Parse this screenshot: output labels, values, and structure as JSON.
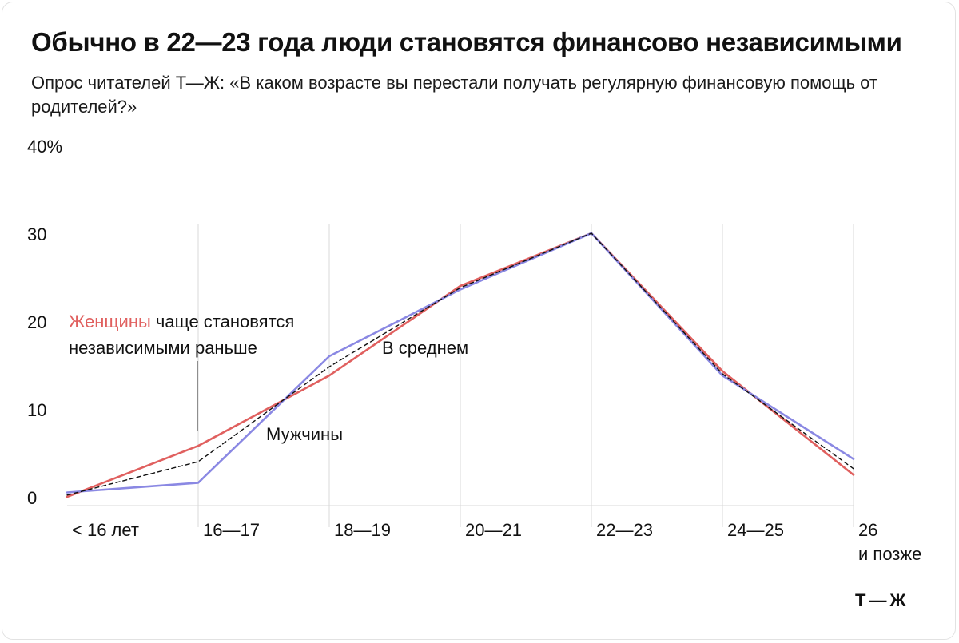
{
  "title": "Обычно в 22—23 года люди становятся финансово независимыми",
  "subtitle": "Опрос читателей Т—Ж: «В каком возрасте вы перестали получать регулярную финансовую помощь от родителей?»",
  "logo_text": "Т—Ж",
  "colors": {
    "women": "#e0605f",
    "men": "#8a88e3",
    "average": "#111111",
    "grid": "#d9d9d9",
    "text": "#111111"
  },
  "chart_data": {
    "type": "line",
    "categories": [
      "< 16 лет",
      "16—17",
      "18—19",
      "20—21",
      "22—23",
      "24—25",
      "26 и позже"
    ],
    "category_label_lines": [
      [
        "< 16 лет"
      ],
      [
        "16—17"
      ],
      [
        "18—19"
      ],
      [
        "20—21"
      ],
      [
        "22—23"
      ],
      [
        "24—25"
      ],
      [
        "26",
        "и позже"
      ]
    ],
    "ylim": [
      0,
      40
    ],
    "y_ticks": [
      0,
      10,
      20,
      30,
      40
    ],
    "y_tick_labels": [
      "0",
      "10",
      "20",
      "30",
      "40%"
    ],
    "grid": "vertical",
    "series": [
      {
        "key": "women",
        "values": [
          1.0,
          6.8,
          14.8,
          25.0,
          31.0,
          15.3,
          3.5
        ]
      },
      {
        "key": "men",
        "values": [
          1.5,
          2.6,
          17.0,
          24.6,
          31.0,
          14.8,
          5.3
        ]
      },
      {
        "key": "average",
        "values": [
          1.2,
          5.0,
          15.8,
          24.8,
          31.0,
          15.0,
          4.2
        ]
      }
    ],
    "annotations": {
      "women_highlight": "Женщины",
      "women_rest": " чаще становятся",
      "women_line2": "независимыми раньше",
      "average": "В среднем",
      "men": "Мужчины"
    }
  }
}
